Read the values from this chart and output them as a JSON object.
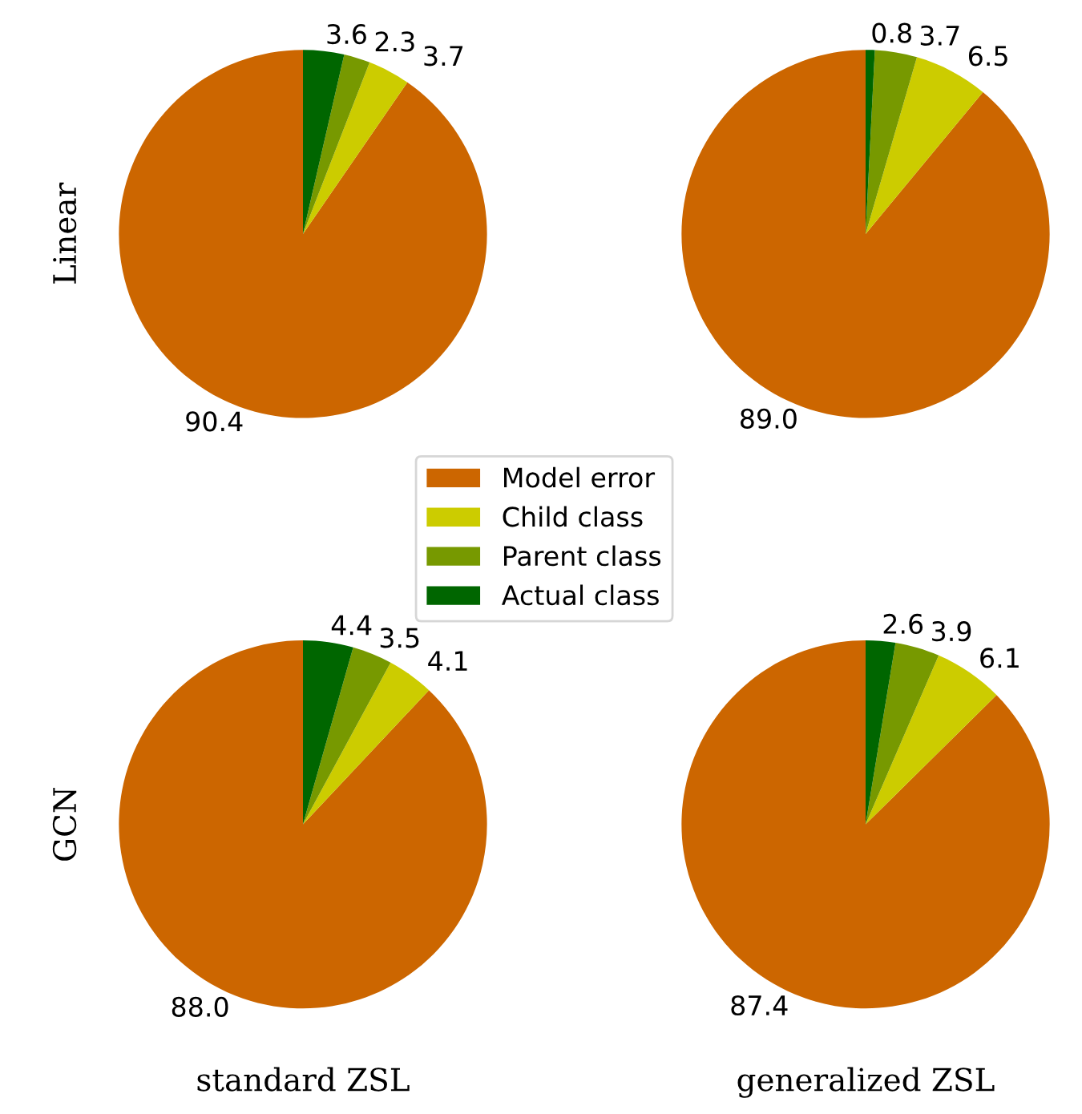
{
  "chart_data": [
    {
      "type": "pie",
      "ylabel": "Linear",
      "categories": [
        "Model error",
        "Child class",
        "Parent class",
        "Actual class"
      ],
      "values": [
        90.4,
        3.7,
        2.3,
        3.6
      ],
      "value_labels": [
        "90.4",
        "3.7",
        "2.3",
        "3.6"
      ],
      "colors": [
        "#cc6600",
        "#cccc00",
        "#779900",
        "#006600"
      ],
      "legend": "bottom right"
    },
    {
      "type": "pie",
      "categories": [
        null,
        null,
        null,
        null
      ],
      "values": [
        89.0,
        6.5,
        3.7,
        0.8
      ],
      "value_labels": [
        "89.0",
        "6.5",
        "3.7",
        "0.8"
      ],
      "colors": [
        "#cc6600",
        "#cccc00",
        "#779900",
        "#006600"
      ]
    },
    {
      "type": "pie",
      "ylabel": "GCN",
      "xlabel": "standard ZSL",
      "categories": [
        null,
        null,
        null,
        null
      ],
      "values": [
        88.0,
        4.1,
        3.5,
        4.4
      ],
      "value_labels": [
        "88.0",
        "4.1",
        "3.5",
        "4.4"
      ],
      "colors": [
        "#cc6600",
        "#cccc00",
        "#779900",
        "#006600"
      ]
    },
    {
      "type": "pie",
      "xlabel": "generalized ZSL",
      "categories": [
        null,
        null,
        null,
        null
      ],
      "values": [
        87.4,
        6.1,
        3.9,
        2.6
      ],
      "value_labels": [
        "87.4",
        "6.1",
        "3.9",
        "2.6"
      ],
      "colors": [
        "#cc6600",
        "#cccc00",
        "#779900",
        "#006600"
      ]
    }
  ]
}
